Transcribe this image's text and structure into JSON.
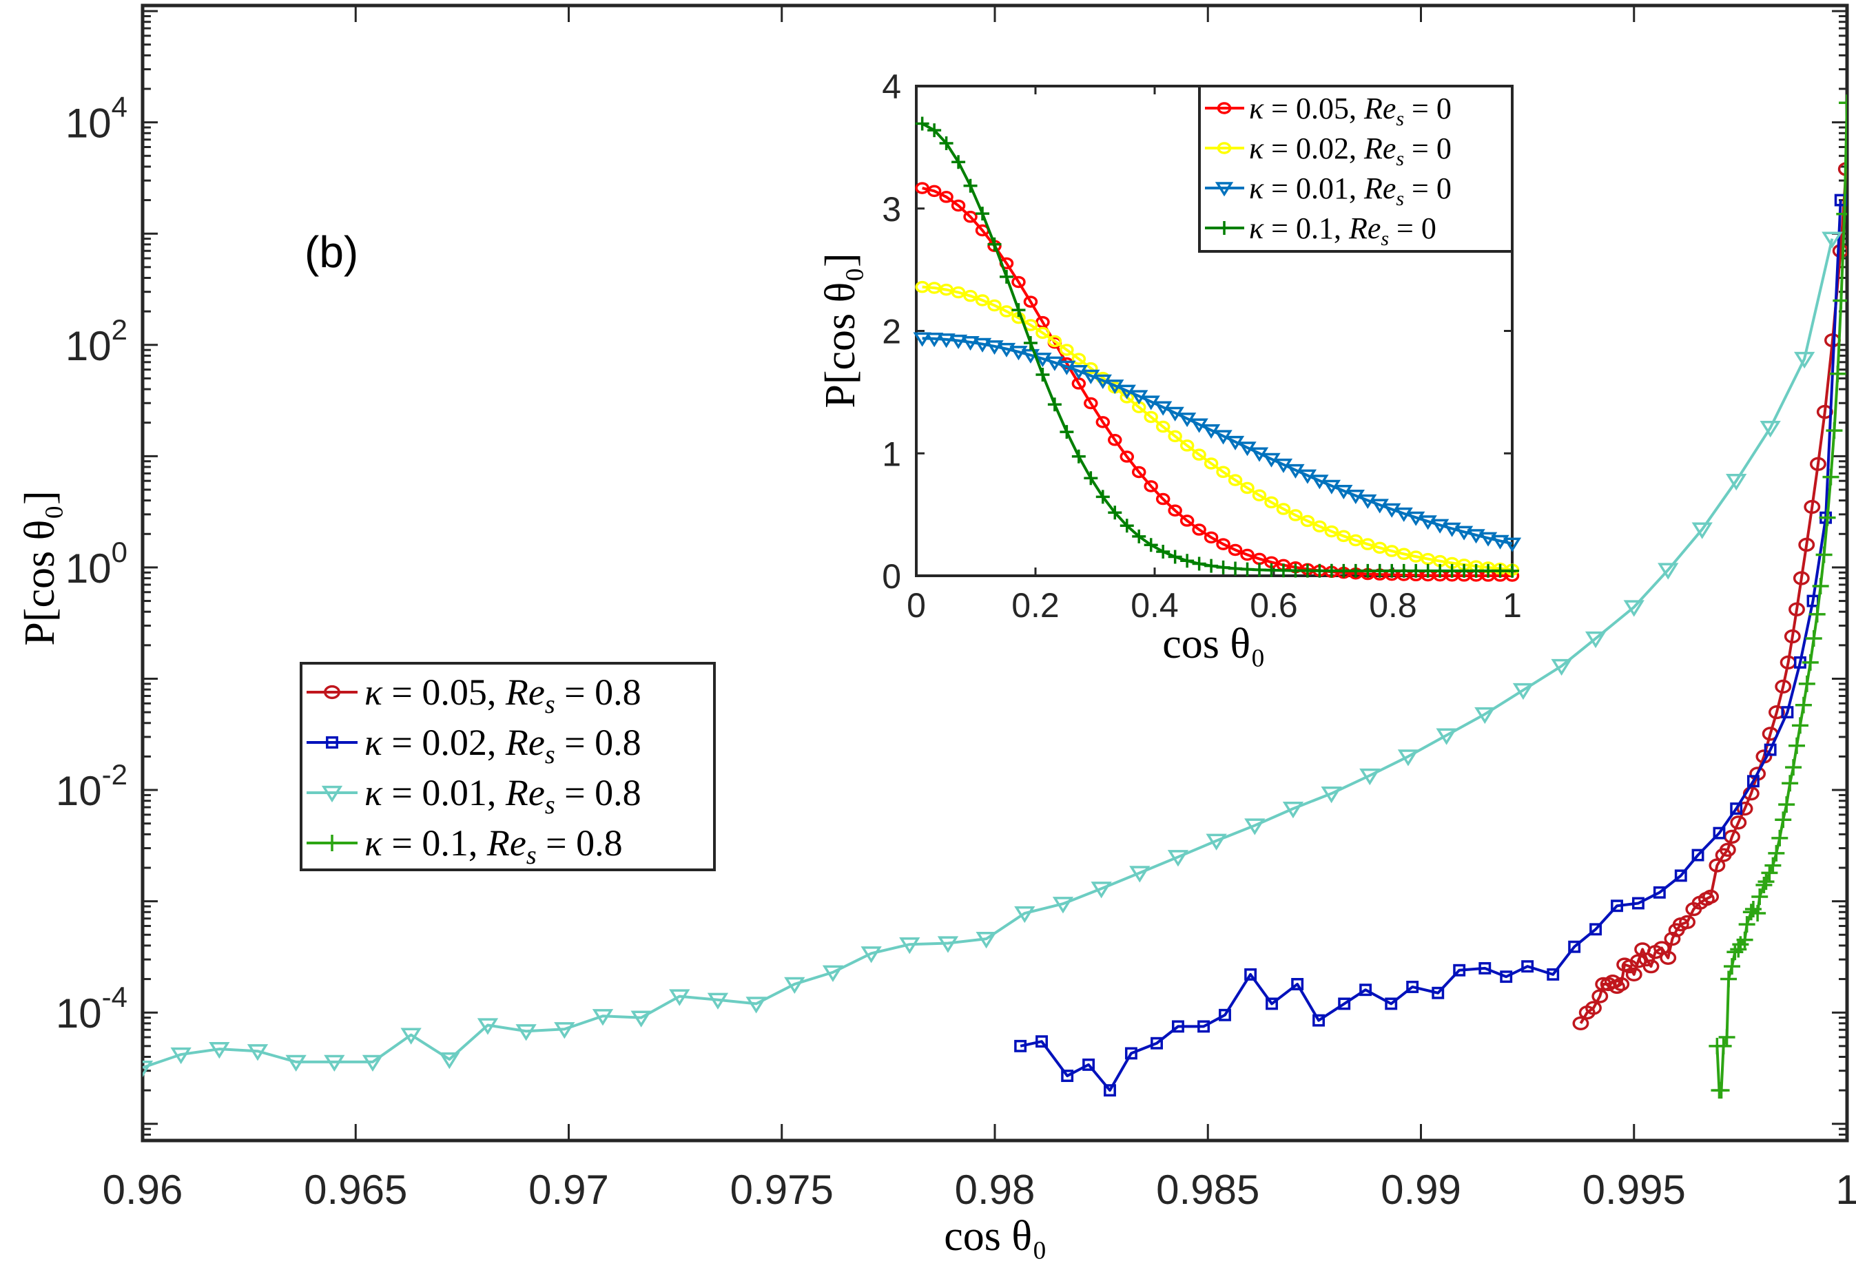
{
  "chart_data": [
    {
      "id": "main",
      "type": "line",
      "panel_label": "(b)",
      "title": "",
      "xlabel": "cos θ₀",
      "ylabel": "P[cos θ₀]",
      "xscale": "linear",
      "yscale": "log",
      "xlim": [
        0.96,
        1.0
      ],
      "ylim_log10": [
        -5.15,
        5.05
      ],
      "xticks": [
        0.96,
        0.965,
        0.97,
        0.975,
        0.98,
        0.985,
        0.99,
        0.995,
        1
      ],
      "xtick_labels": [
        "0.96",
        "0.965",
        "0.97",
        "0.975",
        "0.98",
        "0.985",
        "0.99",
        "0.995",
        "1"
      ],
      "yticks_log10": [
        -4,
        -2,
        0,
        2,
        4
      ],
      "ytick_labels": [
        {
          "base": "10",
          "exp": "-4"
        },
        {
          "base": "10",
          "exp": "-2"
        },
        {
          "base": "10",
          "exp": "0"
        },
        {
          "base": "10",
          "exp": "2"
        },
        {
          "base": "10",
          "exp": "4"
        }
      ],
      "grid": false,
      "legend_position": "center-left",
      "series": [
        {
          "name": "κ = 0.05, Re_s = 0.8",
          "label": {
            "kappa": "0.05",
            "res": "0.8"
          },
          "color": "#C0161D",
          "marker": "circle",
          "x": [
            0.99375,
            0.9939,
            0.99405,
            0.9942,
            0.99428,
            0.9944,
            0.9945,
            0.9946,
            0.9947,
            0.99478,
            0.9949,
            0.995,
            0.9951,
            0.9952,
            0.9953,
            0.9954,
            0.9955,
            0.99565,
            0.9958,
            0.9959,
            0.996,
            0.9961,
            0.99625,
            0.9964,
            0.99655,
            0.9967,
            0.9968,
            0.99695,
            0.9971,
            0.9972,
            0.9973,
            0.99745,
            0.9976,
            0.99775,
            0.9979,
            0.99805,
            0.9982,
            0.99835,
            0.9985,
            0.99862,
            0.99872,
            0.99882,
            0.99893,
            0.99905,
            0.99918,
            0.99932,
            0.99948,
            0.99966,
            0.99985,
            0.99998
          ],
          "y": [
            8e-05,
            0.0001,
            0.00011,
            0.00014,
            0.00018,
            0.00018,
            0.00019,
            0.00017,
            0.00018,
            0.00027,
            0.00026,
            0.00022,
            0.00029,
            0.00037,
            0.0003,
            0.00026,
            0.00035,
            0.00038,
            0.00031,
            0.00046,
            0.00055,
            0.00062,
            0.00065,
            0.00085,
            0.00097,
            0.00105,
            0.0011,
            0.0021,
            0.0026,
            0.0029,
            0.0038,
            0.0051,
            0.0068,
            0.0093,
            0.014,
            0.02,
            0.032,
            0.05,
            0.085,
            0.14,
            0.24,
            0.42,
            0.8,
            1.6,
            3.5,
            8.5,
            25,
            110,
            700,
            3800
          ]
        },
        {
          "name": "κ = 0.02, Re_s = 0.8",
          "label": {
            "kappa": "0.02",
            "res": "0.8"
          },
          "color": "#0011BB",
          "marker": "square",
          "x": [
            0.9806,
            0.9811,
            0.9817,
            0.9822,
            0.9827,
            0.9832,
            0.9838,
            0.9843,
            0.9849,
            0.9854,
            0.986,
            0.9865,
            0.9871,
            0.9876,
            0.9882,
            0.9887,
            0.9893,
            0.9898,
            0.9904,
            0.9909,
            0.9915,
            0.992,
            0.9925,
            0.9931,
            0.9936,
            0.9941,
            0.9946,
            0.9951,
            0.9956,
            0.9961,
            0.9965,
            0.997,
            0.9974,
            0.9978,
            0.9982,
            0.9986,
            0.9989,
            0.9992,
            0.9995,
            0.99985
          ],
          "y": [
            5e-05,
            5.5e-05,
            2.7e-05,
            3.4e-05,
            2e-05,
            4.3e-05,
            5.3e-05,
            7.5e-05,
            7.5e-05,
            9.5e-05,
            0.00022,
            0.00012,
            0.00018,
            8.5e-05,
            0.00012,
            0.00016,
            0.00012,
            0.00017,
            0.00015,
            0.00024,
            0.00025,
            0.00021,
            0.00026,
            0.00022,
            0.00039,
            0.00056,
            0.00091,
            0.00096,
            0.0012,
            0.0017,
            0.0026,
            0.0041,
            0.0068,
            0.012,
            0.023,
            0.05,
            0.14,
            0.5,
            2.8,
            2000
          ]
        },
        {
          "name": "κ = 0.01, Re_s = 0.8",
          "label": {
            "kappa": "0.01",
            "res": "0.8"
          },
          "color": "#6CCDC2",
          "marker": "triangle-down",
          "x": [
            0.96,
            0.9609,
            0.9618,
            0.9627,
            0.9636,
            0.9645,
            0.9654,
            0.9663,
            0.9672,
            0.9681,
            0.969,
            0.9699,
            0.9708,
            0.9717,
            0.9726,
            0.9735,
            0.9744,
            0.9753,
            0.9762,
            0.9771,
            0.978,
            0.9789,
            0.9798,
            0.9807,
            0.9816,
            0.9825,
            0.9834,
            0.9843,
            0.9852,
            0.9861,
            0.987,
            0.9879,
            0.9888,
            0.9897,
            0.9906,
            0.9915,
            0.9924,
            0.9933,
            0.9941,
            0.995,
            0.9958,
            0.9966,
            0.9974,
            0.9982,
            0.999,
            0.99965
          ],
          "y": [
            3.2e-05,
            4.2e-05,
            4.7e-05,
            4.5e-05,
            3.6e-05,
            3.6e-05,
            3.6e-05,
            6.3e-05,
            3.8e-05,
            7.7e-05,
            6.8e-05,
            7.1e-05,
            9.3e-05,
            9e-05,
            0.00014,
            0.00013,
            0.00012,
            0.00018,
            0.00023,
            0.00034,
            0.00041,
            0.00042,
            0.00046,
            0.00078,
            0.00095,
            0.0013,
            0.0018,
            0.0025,
            0.0035,
            0.0048,
            0.0068,
            0.0093,
            0.0135,
            0.02,
            0.031,
            0.048,
            0.079,
            0.13,
            0.23,
            0.44,
            0.95,
            2.2,
            6.0,
            18,
            75,
            900
          ]
        },
        {
          "name": "κ = 0.1, Re_s = 0.8",
          "label": {
            "kappa": "0.1",
            "res": "0.8"
          },
          "color": "#2CA513",
          "marker": "plus",
          "x": [
            0.99695,
            0.997,
            0.99705,
            0.9971,
            0.99718,
            0.99722,
            0.9973,
            0.99737,
            0.99745,
            0.9975,
            0.9976,
            0.99765,
            0.99775,
            0.9978,
            0.9979,
            0.99795,
            0.99805,
            0.9981,
            0.99818,
            0.99826,
            0.99834,
            0.99842,
            0.9985,
            0.99858,
            0.99866,
            0.99874,
            0.99882,
            0.9989,
            0.99898,
            0.99906,
            0.99914,
            0.99922,
            0.9993,
            0.99938,
            0.99946,
            0.99954,
            0.99962,
            0.9997,
            0.99978,
            0.99986,
            0.99994,
            1.0
          ],
          "y": [
            5e-05,
            2e-05,
            2e-05,
            5e-05,
            6e-05,
            0.0002,
            0.00026,
            0.00035,
            0.00037,
            0.00041,
            0.00045,
            0.00062,
            0.0008,
            0.00085,
            0.00078,
            0.0011,
            0.0014,
            0.0015,
            0.0018,
            0.0021,
            0.0027,
            0.0037,
            0.0054,
            0.0074,
            0.0115,
            0.016,
            0.025,
            0.038,
            0.058,
            0.09,
            0.14,
            0.23,
            0.38,
            0.68,
            1.3,
            2.8,
            6.5,
            17,
            55,
            250,
            1500,
            15000
          ]
        }
      ]
    },
    {
      "id": "inset",
      "type": "line",
      "title": "",
      "xlabel": "cos θ₀",
      "ylabel": "P[cos θ₀]",
      "xlim": [
        0,
        1
      ],
      "ylim": [
        0,
        4
      ],
      "xticks": [
        0,
        0.2,
        0.4,
        0.6,
        0.8,
        1
      ],
      "xtick_labels": [
        "0",
        "0.2",
        "0.4",
        "0.6",
        "0.8",
        "1"
      ],
      "yticks": [
        0,
        1,
        2,
        3,
        4
      ],
      "ytick_labels": [
        "0",
        "1",
        "2",
        "3",
        "4"
      ],
      "grid": false,
      "legend_position": "top-right",
      "series": [
        {
          "name": "κ = 0.05, Re_s = 0",
          "label": {
            "kappa": "0.05",
            "res": "0"
          },
          "color": "#FF0000",
          "marker": "circle",
          "sigma": 0.23,
          "amp": 3.17,
          "tail": 0.0
        },
        {
          "name": "κ = 0.02, Re_s = 0",
          "label": {
            "kappa": "0.02",
            "res": "0"
          },
          "color": "#FFFF00",
          "marker": "circle",
          "sigma": 0.36,
          "amp": 2.36,
          "tail": 0.0
        },
        {
          "name": "κ = 0.01, Re_s = 0",
          "label": {
            "kappa": "0.01",
            "res": "0"
          },
          "color": "#0072BD",
          "marker": "triangle-down",
          "sigma": 0.5,
          "amp": 1.94,
          "tail": 0.0
        },
        {
          "name": "κ = 0.1, Re_s = 0",
          "label": {
            "kappa": "0.1",
            "res": "0"
          },
          "color": "#007F00",
          "marker": "plus",
          "sigma": 0.165,
          "amp": 3.7,
          "tail": 0.04
        }
      ],
      "x_samples": 50
    }
  ]
}
